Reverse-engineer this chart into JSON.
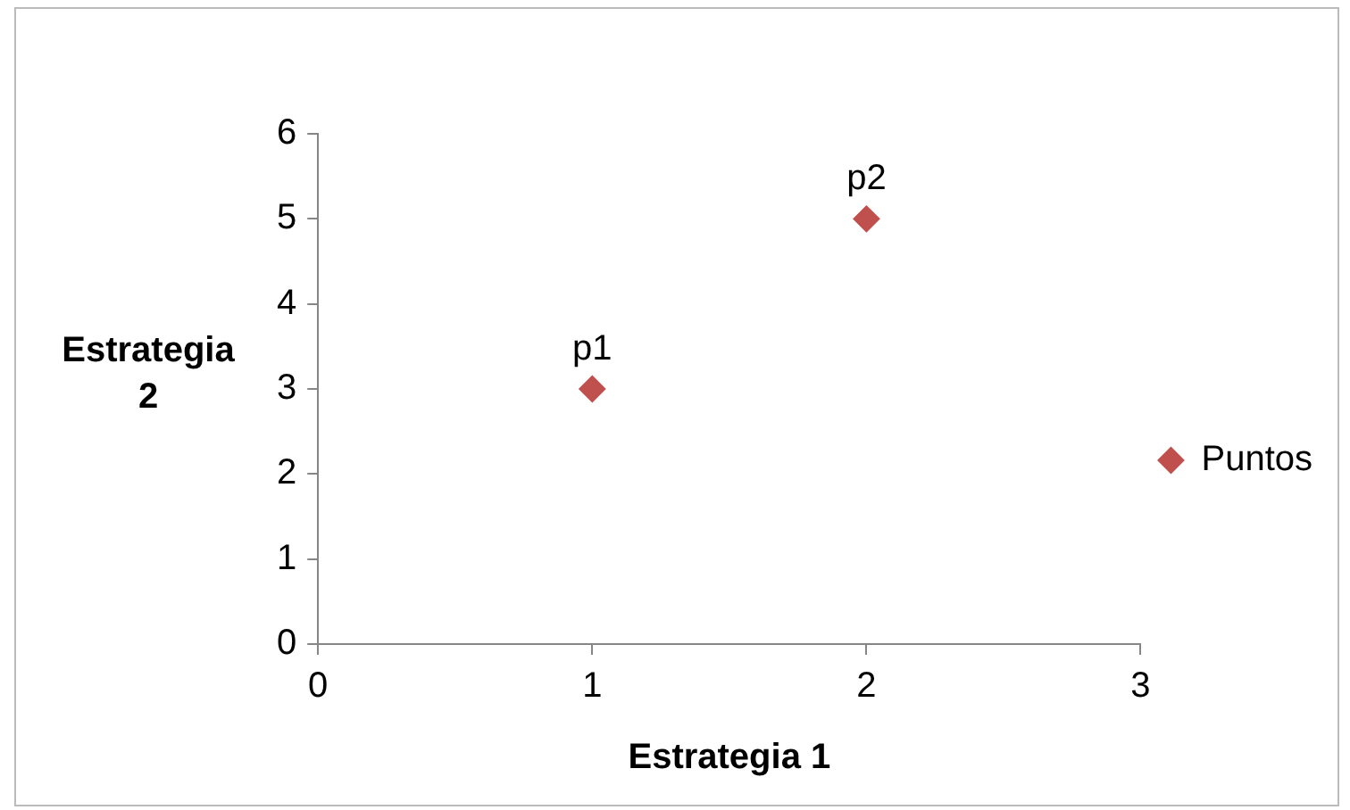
{
  "chart_data": {
    "type": "scatter",
    "xlabel": "Estrategia 1",
    "ylabel": "Estrategia 2",
    "xlim": [
      0,
      3
    ],
    "xticks": [
      0,
      1,
      2,
      3
    ],
    "ylim": [
      0,
      6
    ],
    "yticks": [
      0,
      1,
      2,
      3,
      4,
      5,
      6
    ],
    "series": [
      {
        "name": "Puntos",
        "color": "#c0504d",
        "x": [
          1,
          2
        ],
        "values": [
          3,
          5
        ]
      }
    ],
    "annotations": [
      {
        "text": "p1",
        "x": 1,
        "y": 3
      },
      {
        "text": "p2",
        "x": 2,
        "y": 5
      }
    ],
    "marker": "diamond",
    "grid": false,
    "legend": "right"
  }
}
